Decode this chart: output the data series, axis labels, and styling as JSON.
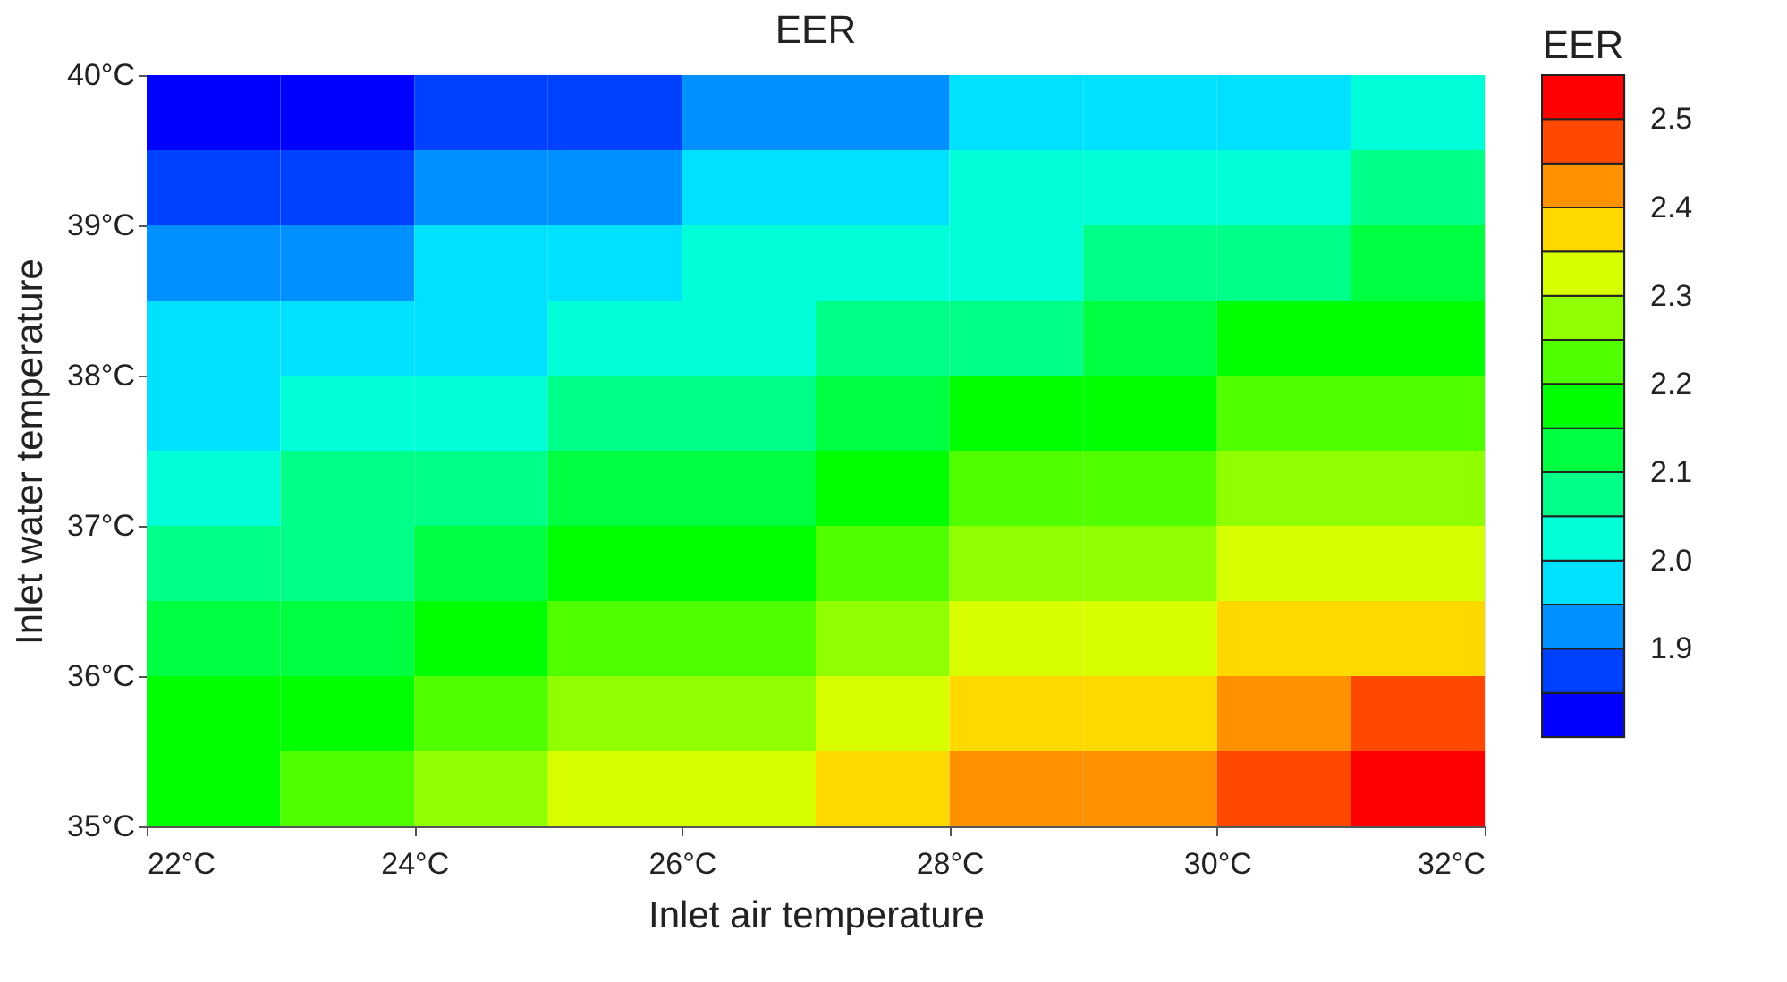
{
  "chart_data": {
    "type": "heatmap",
    "title": "EER",
    "xlabel": "Inlet air temperature",
    "ylabel": "Inlet water temperature",
    "clabel": "EER",
    "x": [
      22.5,
      23.5,
      24.5,
      25.5,
      26.5,
      27.5,
      28.5,
      29.5,
      30.5,
      31.5
    ],
    "y": [
      39.75,
      39.25,
      38.75,
      38.25,
      37.75,
      37.25,
      36.75,
      36.25,
      35.75,
      35.25
    ],
    "cells": [
      [
        1.83,
        1.84,
        1.86,
        1.88,
        1.91,
        1.93,
        1.96,
        1.97,
        1.99,
        2.01
      ],
      [
        1.87,
        1.88,
        1.91,
        1.93,
        1.96,
        1.98,
        2.01,
        2.02,
        2.04,
        2.07
      ],
      [
        1.91,
        1.93,
        1.96,
        1.97,
        2.01,
        2.02,
        2.04,
        2.07,
        2.09,
        2.12
      ],
      [
        1.96,
        1.97,
        1.99,
        2.02,
        2.04,
        2.07,
        2.09,
        2.13,
        2.16,
        2.18
      ],
      [
        1.99,
        2.01,
        2.04,
        2.07,
        2.09,
        2.12,
        2.16,
        2.18,
        2.21,
        2.23
      ],
      [
        2.03,
        2.06,
        2.08,
        2.11,
        2.14,
        2.17,
        2.21,
        2.23,
        2.26,
        2.29
      ],
      [
        2.07,
        2.09,
        2.13,
        2.16,
        2.19,
        2.22,
        2.26,
        2.28,
        2.31,
        2.34
      ],
      [
        2.11,
        2.14,
        2.17,
        2.21,
        2.24,
        2.27,
        2.31,
        2.33,
        2.37,
        2.39
      ],
      [
        2.15,
        2.18,
        2.22,
        2.26,
        2.28,
        2.32,
        2.36,
        2.39,
        2.42,
        2.46
      ],
      [
        2.19,
        2.23,
        2.26,
        2.31,
        2.33,
        2.37,
        2.41,
        2.44,
        2.47,
        2.52
      ]
    ],
    "colors": [
      "#0000ff",
      "#0040ff",
      "#0090ff",
      "#00e0ff",
      "#00ffd8",
      "#00ff88",
      "#00ff40",
      "#00ff00",
      "#50ff00",
      "#90ff00",
      "#d8ff00",
      "#ffd800",
      "#ff9000",
      "#ff4800",
      "#ff0000"
    ],
    "clim": [
      1.8,
      2.55
    ],
    "cticks": [
      1.9,
      {
        "value": 2,
        "label": "2.0"
      },
      2.1,
      2.2,
      2.3,
      2.4,
      2.5
    ],
    "xlim": [
      22,
      32
    ],
    "xticks": [
      {
        "value": 22,
        "label": "22°C"
      },
      {
        "value": 24,
        "label": "24°C"
      },
      {
        "value": 26,
        "label": "26°C"
      },
      {
        "value": 28,
        "label": "28°C"
      },
      {
        "value": 30,
        "label": "30°C"
      },
      {
        "value": 32,
        "label": "32°C"
      }
    ],
    "ylim": [
      35,
      40
    ],
    "yticks": [
      {
        "value": 35,
        "label": "35°C"
      },
      {
        "value": 36,
        "label": "36°C"
      },
      {
        "value": 37,
        "label": "37°C"
      },
      {
        "value": 38,
        "label": "38°C"
      },
      {
        "value": 39,
        "label": "39°C"
      },
      {
        "value": 40,
        "label": "40°C"
      }
    ]
  }
}
